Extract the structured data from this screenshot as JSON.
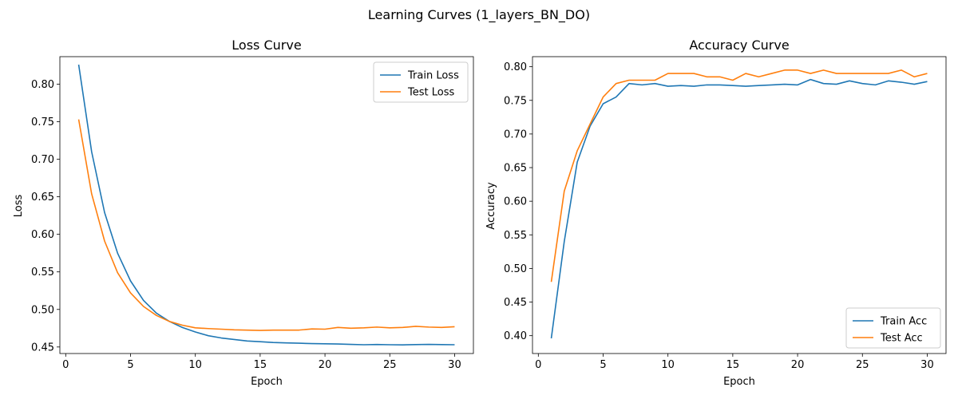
{
  "suptitle": "Learning Curves (1_layers_BN_DO)",
  "colors": {
    "train": "#1f77b4",
    "test": "#ff7f0e"
  },
  "chart_data": [
    {
      "type": "line",
      "title": "Loss Curve",
      "xlabel": "Epoch",
      "ylabel": "Loss",
      "xlim": [
        -0.45,
        31.45
      ],
      "ylim": [
        0.4413,
        0.8366
      ],
      "xticks": [
        0,
        5,
        10,
        15,
        20,
        25,
        30
      ],
      "yticks": [
        0.45,
        0.5,
        0.55,
        0.6,
        0.65,
        0.7,
        0.75,
        0.8
      ],
      "legend_position": "top-right",
      "x": [
        1,
        2,
        3,
        4,
        5,
        6,
        7,
        8,
        9,
        10,
        11,
        12,
        13,
        14,
        15,
        16,
        17,
        18,
        19,
        20,
        21,
        22,
        23,
        24,
        25,
        26,
        27,
        28,
        29,
        30
      ],
      "series": [
        {
          "name": "Train Loss",
          "values": [
            0.826,
            0.71,
            0.629,
            0.575,
            0.538,
            0.512,
            0.495,
            0.484,
            0.476,
            0.47,
            0.465,
            0.462,
            0.46,
            0.458,
            0.457,
            0.456,
            0.4555,
            0.455,
            0.4545,
            0.4542,
            0.454,
            0.4535,
            0.453,
            0.4533,
            0.453,
            0.4528,
            0.4532,
            0.4535,
            0.4532,
            0.453
          ]
        },
        {
          "name": "Test Loss",
          "values": [
            0.753,
            0.654,
            0.591,
            0.549,
            0.522,
            0.504,
            0.492,
            0.484,
            0.479,
            0.4755,
            0.4745,
            0.4737,
            0.4728,
            0.4725,
            0.472,
            0.4725,
            0.4725,
            0.4725,
            0.474,
            0.4737,
            0.476,
            0.475,
            0.4755,
            0.4765,
            0.4755,
            0.476,
            0.4775,
            0.4765,
            0.476,
            0.477
          ]
        }
      ]
    },
    {
      "type": "line",
      "title": "Accuracy Curve",
      "xlabel": "Epoch",
      "ylabel": "Accuracy",
      "xlim": [
        -0.45,
        31.45
      ],
      "ylim": [
        0.3735,
        0.815
      ],
      "xticks": [
        0,
        5,
        10,
        15,
        20,
        25,
        30
      ],
      "yticks": [
        0.4,
        0.45,
        0.5,
        0.55,
        0.6,
        0.65,
        0.7,
        0.75,
        0.8
      ],
      "legend_position": "bottom-right",
      "x": [
        1,
        2,
        3,
        4,
        5,
        6,
        7,
        8,
        9,
        10,
        11,
        12,
        13,
        14,
        15,
        16,
        17,
        18,
        19,
        20,
        21,
        22,
        23,
        24,
        25,
        26,
        27,
        28,
        29,
        30
      ],
      "series": [
        {
          "name": "Train Acc",
          "values": [
            0.396,
            0.54,
            0.658,
            0.712,
            0.745,
            0.755,
            0.775,
            0.773,
            0.775,
            0.771,
            0.772,
            0.771,
            0.773,
            0.773,
            0.772,
            0.771,
            0.772,
            0.773,
            0.774,
            0.773,
            0.781,
            0.775,
            0.774,
            0.779,
            0.775,
            0.773,
            0.779,
            0.777,
            0.774,
            0.778
          ]
        },
        {
          "name": "Test Acc",
          "values": [
            0.48,
            0.615,
            0.675,
            0.715,
            0.755,
            0.775,
            0.78,
            0.78,
            0.78,
            0.79,
            0.79,
            0.79,
            0.785,
            0.785,
            0.78,
            0.79,
            0.785,
            0.79,
            0.795,
            0.795,
            0.79,
            0.795,
            0.79,
            0.79,
            0.79,
            0.79,
            0.79,
            0.795,
            0.785,
            0.79
          ]
        }
      ]
    }
  ]
}
